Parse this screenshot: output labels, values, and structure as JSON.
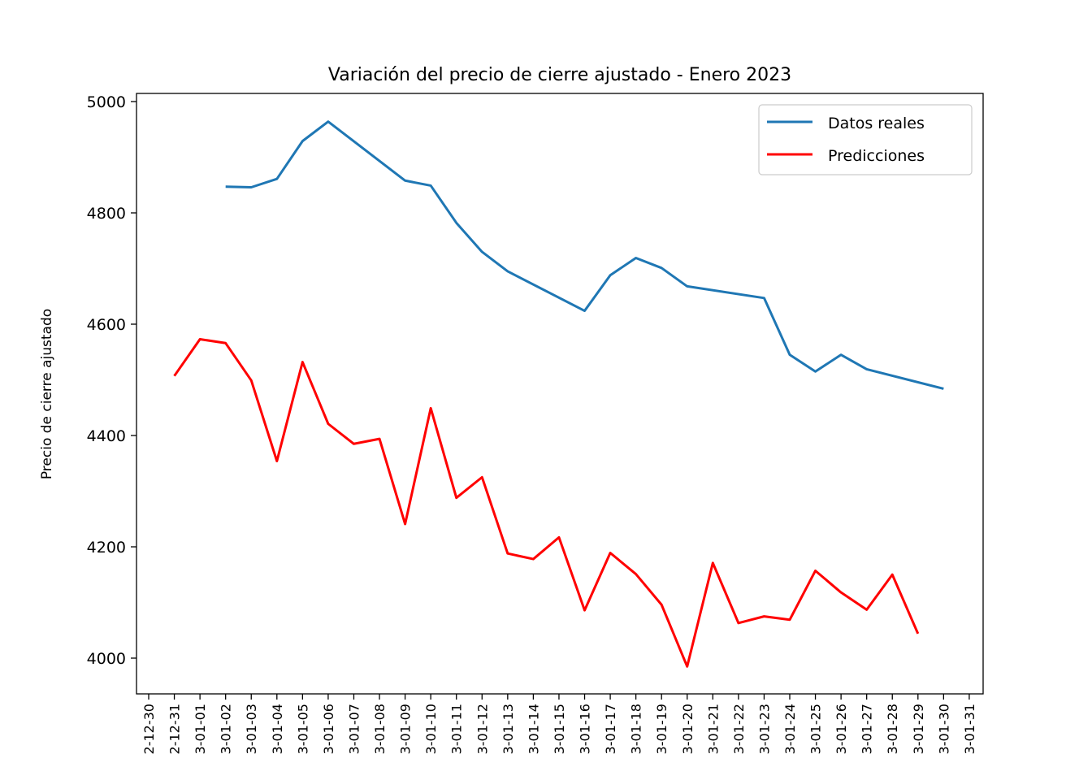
{
  "chart_data": {
    "type": "line",
    "title": "Variación del precio de cierre ajustado - Enero 2023",
    "xlabel": "",
    "ylabel": "Precio de cierre ajustado",
    "xlim": [
      "2022-12-30",
      "2023-01-31"
    ],
    "ylim": [
      3940,
      5013
    ],
    "y_ticks": [
      4000,
      4200,
      4400,
      4600,
      4800,
      5000
    ],
    "x_tick_labels": [
      "2-12-30",
      "2-12-31",
      "3-01-01",
      "3-01-02",
      "3-01-03",
      "3-01-04",
      "3-01-05",
      "3-01-06",
      "3-01-07",
      "3-01-08",
      "3-01-09",
      "3-01-10",
      "3-01-11",
      "3-01-12",
      "3-01-13",
      "3-01-14",
      "3-01-15",
      "3-01-16",
      "3-01-17",
      "3-01-18",
      "3-01-19",
      "3-01-20",
      "3-01-21",
      "3-01-22",
      "3-01-23",
      "3-01-24",
      "3-01-25",
      "3-01-26",
      "3-01-27",
      "3-01-28",
      "3-01-29",
      "3-01-30",
      "3-01-31"
    ],
    "grid": false,
    "legend_position": "top-right",
    "series": [
      {
        "name": "Datos reales",
        "color": "#1f77b4",
        "x": [
          "2023-01-02",
          "2023-01-03",
          "2023-01-04",
          "2023-01-05",
          "2023-01-06",
          "2023-01-09",
          "2023-01-10",
          "2023-01-11",
          "2023-01-12",
          "2023-01-13",
          "2023-01-16",
          "2023-01-17",
          "2023-01-18",
          "2023-01-19",
          "2023-01-20",
          "2023-01-23",
          "2023-01-24",
          "2023-01-25",
          "2023-01-26",
          "2023-01-27",
          "2023-01-30"
        ],
        "values": [
          4847,
          4846,
          4861,
          4929,
          4964,
          4858,
          4849,
          4782,
          4730,
          4695,
          4624,
          4688,
          4719,
          4701,
          4668,
          4647,
          4545,
          4515,
          4545,
          4519,
          4484
        ]
      },
      {
        "name": "Predicciones",
        "color": "#ff0000",
        "x": [
          "2022-12-31",
          "2023-01-01",
          "2023-01-02",
          "2023-01-03",
          "2023-01-04",
          "2023-01-05",
          "2023-01-06",
          "2023-01-07",
          "2023-01-08",
          "2023-01-09",
          "2023-01-10",
          "2023-01-11",
          "2023-01-12",
          "2023-01-13",
          "2023-01-14",
          "2023-01-15",
          "2023-01-16",
          "2023-01-17",
          "2023-01-18",
          "2023-01-19",
          "2023-01-20",
          "2023-01-21",
          "2023-01-22",
          "2023-01-23",
          "2023-01-24",
          "2023-01-25",
          "2023-01-26",
          "2023-01-27",
          "2023-01-28",
          "2023-01-29"
        ],
        "values": [
          4507,
          4573,
          4566,
          4499,
          4354,
          4532,
          4421,
          4385,
          4394,
          4241,
          4449,
          4288,
          4325,
          4188,
          4178,
          4217,
          4086,
          4189,
          4151,
          4096,
          3985,
          4171,
          4063,
          4075,
          4069,
          4157,
          4118,
          4087,
          4150,
          4044
        ]
      }
    ]
  }
}
